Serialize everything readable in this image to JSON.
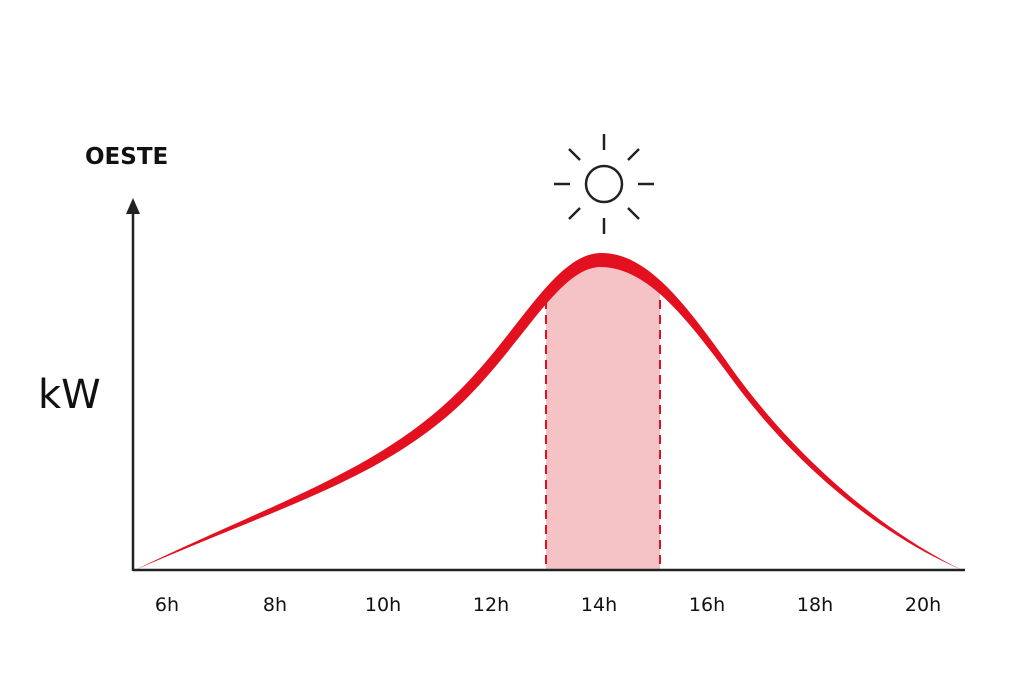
{
  "title": "OESTE",
  "y_axis_label": "kW",
  "x_labels": [
    "6h",
    "8h",
    "10h",
    "12h",
    "14h",
    "16h",
    "18h",
    "20h"
  ]
}
